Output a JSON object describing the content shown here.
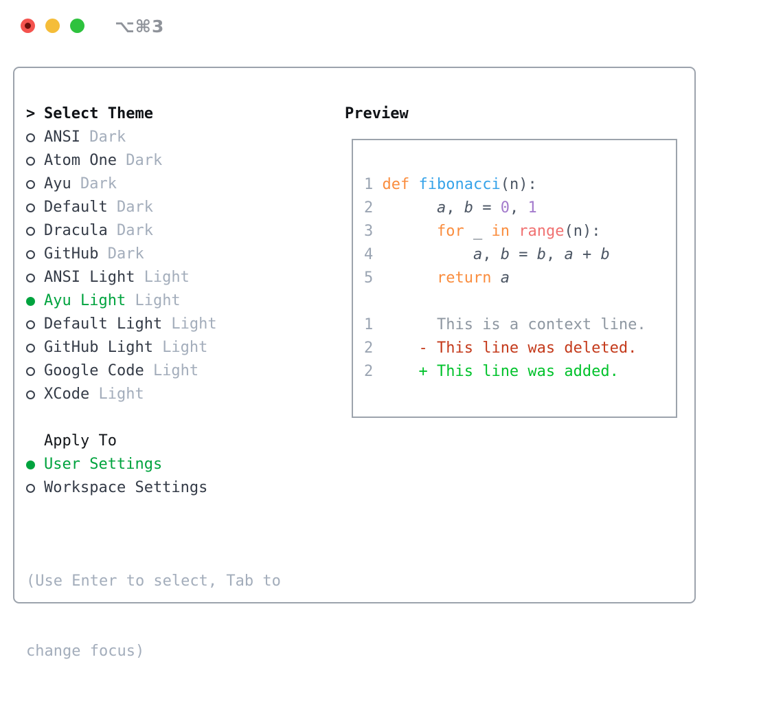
{
  "window": {
    "title": "⌥⌘3"
  },
  "traffic_lights": [
    {
      "name": "close",
      "color": "#f4534e"
    },
    {
      "name": "minimize",
      "color": "#f5bd39"
    },
    {
      "name": "zoom",
      "color": "#2ec23e"
    }
  ],
  "theme_list": {
    "header": {
      "marker": ">",
      "label": "Select Theme"
    },
    "items": [
      {
        "label": "ANSI",
        "variant": "Dark",
        "selected": false
      },
      {
        "label": "Atom One",
        "variant": "Dark",
        "selected": false
      },
      {
        "label": "Ayu",
        "variant": "Dark",
        "selected": false
      },
      {
        "label": "Default",
        "variant": "Dark",
        "selected": false
      },
      {
        "label": "Dracula",
        "variant": "Dark",
        "selected": false
      },
      {
        "label": "GitHub",
        "variant": "Dark",
        "selected": false
      },
      {
        "label": "ANSI Light",
        "variant": "Light",
        "selected": false
      },
      {
        "label": "Ayu Light",
        "variant": "Light",
        "selected": true
      },
      {
        "label": "Default Light",
        "variant": "Light",
        "selected": false
      },
      {
        "label": "GitHub Light",
        "variant": "Light",
        "selected": false
      },
      {
        "label": "Google Code",
        "variant": "Light",
        "selected": false
      },
      {
        "label": "XCode",
        "variant": "Light",
        "selected": false
      }
    ]
  },
  "apply_to": {
    "header": "Apply To",
    "options": [
      {
        "label": "User Settings",
        "selected": true
      },
      {
        "label": "Workspace Settings",
        "selected": false
      }
    ]
  },
  "help": {
    "line1": "(Use Enter to select, Tab to",
    "line2": "change focus)"
  },
  "preview": {
    "header": "Preview",
    "code_lines": [
      {
        "num": "1",
        "segs": [
          {
            "t": " ",
            "c": "pl"
          },
          {
            "t": "def",
            "c": "kw"
          },
          {
            "t": " ",
            "c": "pl"
          },
          {
            "t": "fibonacci",
            "c": "fn"
          },
          {
            "t": "(n):",
            "c": "pl"
          }
        ]
      },
      {
        "num": "2",
        "segs": [
          {
            "t": "       ",
            "c": "pl"
          },
          {
            "t": "a",
            "c": "var"
          },
          {
            "t": ", ",
            "c": "pl"
          },
          {
            "t": "b",
            "c": "var"
          },
          {
            "t": " = ",
            "c": "pl"
          },
          {
            "t": "0",
            "c": "num"
          },
          {
            "t": ", ",
            "c": "pl"
          },
          {
            "t": "1",
            "c": "num"
          }
        ]
      },
      {
        "num": "3",
        "segs": [
          {
            "t": "       ",
            "c": "pl"
          },
          {
            "t": "for",
            "c": "kw"
          },
          {
            "t": " _ ",
            "c": "pl"
          },
          {
            "t": "in",
            "c": "kw"
          },
          {
            "t": " ",
            "c": "pl"
          },
          {
            "t": "range",
            "c": "sp"
          },
          {
            "t": "(n):",
            "c": "pl"
          }
        ]
      },
      {
        "num": "4",
        "segs": [
          {
            "t": "           ",
            "c": "pl"
          },
          {
            "t": "a",
            "c": "var"
          },
          {
            "t": ", ",
            "c": "pl"
          },
          {
            "t": "b",
            "c": "var"
          },
          {
            "t": " = ",
            "c": "pl"
          },
          {
            "t": "b",
            "c": "var"
          },
          {
            "t": ", ",
            "c": "pl"
          },
          {
            "t": "a",
            "c": "var"
          },
          {
            "t": " + ",
            "c": "pl"
          },
          {
            "t": "b",
            "c": "var"
          }
        ]
      },
      {
        "num": "5",
        "segs": [
          {
            "t": "       ",
            "c": "pl"
          },
          {
            "t": "return",
            "c": "kw"
          },
          {
            "t": " ",
            "c": "pl"
          },
          {
            "t": "a",
            "c": "var"
          }
        ]
      }
    ],
    "diff_lines": [
      {
        "num": "1",
        "segs": [
          {
            "t": "       This is a context line.",
            "c": "ctx"
          }
        ]
      },
      {
        "num": "2",
        "segs": [
          {
            "t": "     ",
            "c": "pl"
          },
          {
            "t": "- This line was deleted.",
            "c": "del"
          }
        ]
      },
      {
        "num": "2",
        "segs": [
          {
            "t": "     ",
            "c": "pl"
          },
          {
            "t": "+ This line was added.",
            "c": "add"
          }
        ]
      }
    ]
  },
  "colors": {
    "panel_border": "#9ca3ac",
    "selected_green": "#00a33e",
    "item_text": "#343b47",
    "muted_text": "#a3adbb",
    "syntax_keyword": "#fa8d3e",
    "syntax_function": "#36a3e9",
    "syntax_number": "#a37acc",
    "syntax_special": "#f07171",
    "diff_deleted": "#c43a1b",
    "diff_added": "#00c22b",
    "title_text": "#8f939a"
  }
}
